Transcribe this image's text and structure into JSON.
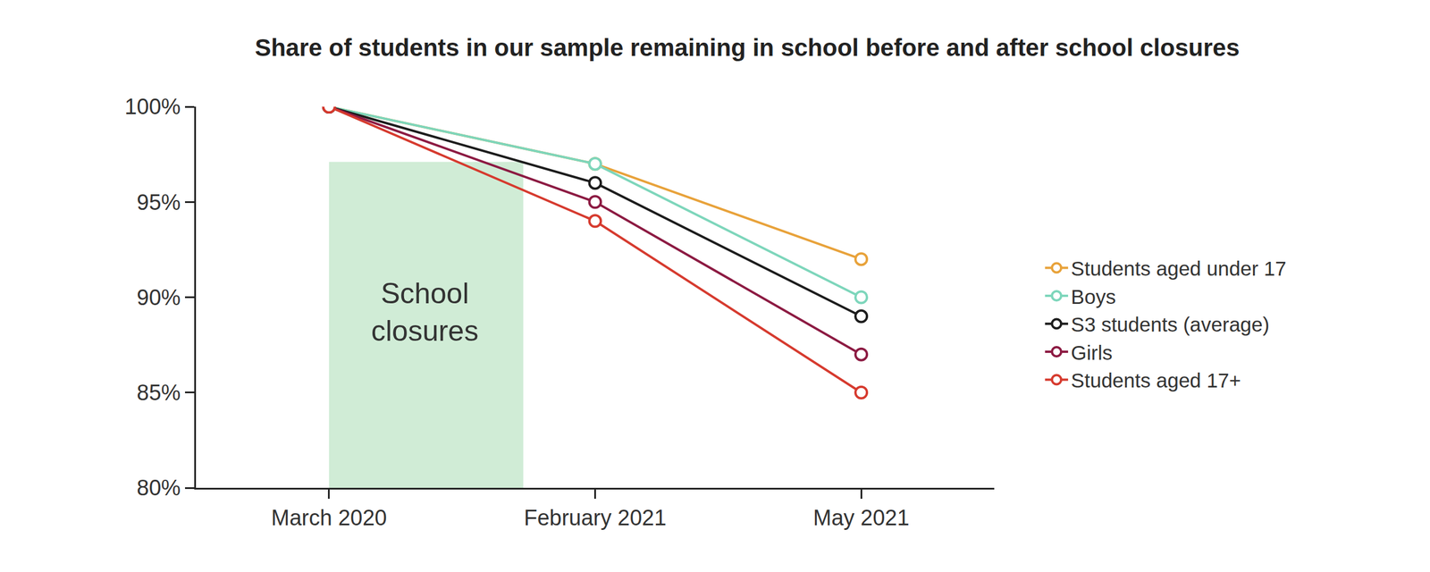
{
  "chart_data": {
    "type": "line",
    "title": "Share of students in our sample remaining in school before and after school closures",
    "categories": [
      "March 2020",
      "February 2021",
      "May 2021"
    ],
    "series": [
      {
        "name": "Students aged under 17",
        "color": "#e8a23a",
        "values": [
          100,
          97,
          92
        ]
      },
      {
        "name": "Boys",
        "color": "#7dd6bb",
        "values": [
          100,
          97,
          90
        ]
      },
      {
        "name": "S3 students (average)",
        "color": "#1c1c1c",
        "values": [
          100,
          96,
          89
        ]
      },
      {
        "name": "Girls",
        "color": "#8c1a42",
        "values": [
          100,
          95,
          87
        ]
      },
      {
        "name": "Students aged 17+",
        "color": "#d63a2e",
        "values": [
          100,
          94,
          85
        ]
      }
    ],
    "ylim": [
      80,
      100
    ],
    "yticks": [
      {
        "value": 80,
        "label": "80%"
      },
      {
        "value": 85,
        "label": "85%"
      },
      {
        "value": 90,
        "label": "90%"
      },
      {
        "value": 95,
        "label": "95%"
      },
      {
        "value": 100,
        "label": "100%"
      }
    ],
    "annotations": [
      {
        "text": "School closures"
      }
    ],
    "grid": false,
    "legend": "right",
    "marker": "open-circle"
  }
}
